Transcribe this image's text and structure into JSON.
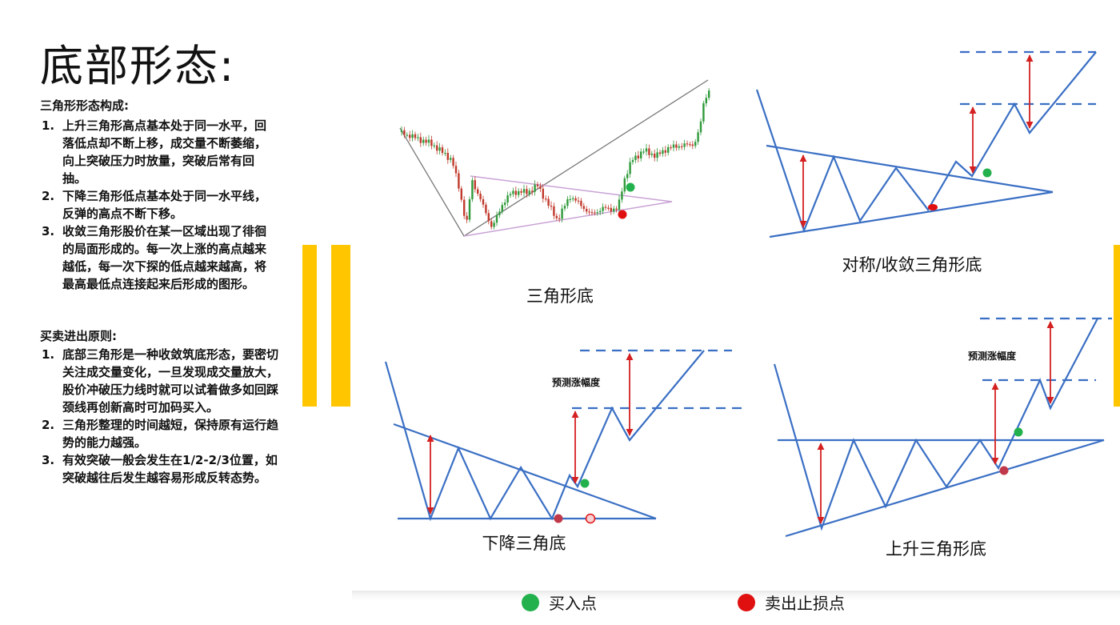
{
  "title": "底部形态:",
  "section1": {
    "heading": "三角形形态构成:",
    "items": [
      {
        "num": "1.",
        "text": "上升三角形高点基本处于同一水平，回落低点却不断上移，成交量不断萎缩，向上突破压力时放量，突破后常有回抽。"
      },
      {
        "num": "2.",
        "text": "下降三角形低点基本处于同一水平线，反弹的高点不断下移。"
      },
      {
        "num": "3.",
        "text": "收敛三角形股价在某一区域出现了徘徊的局面形成的。每一次上涨的高点越来越低，每一次下探的低点越来越高，将最高最低点连接起来后形成的图形。"
      }
    ]
  },
  "section2": {
    "heading": "买卖进出原则:",
    "items": [
      {
        "num": "1.",
        "text": "底部三角形是一种收敛筑底形态，要密切关注成交量变化，一旦发现成交量放大，股价冲破压力线时就可以试着做多如回踩颈线再创新高时可加码买入。"
      },
      {
        "num": "2.",
        "text": "三角形整理的时间越短，保持原有运行趋势的能力越强。"
      },
      {
        "num": "3.",
        "text": "有效突破一般会发生在1/2-2/3位置，如突破越往后发生越容易形成反转态势。"
      }
    ]
  },
  "diagrams": {
    "candle_caption": "三角形底",
    "sym_caption": "对称/收敛三角形底",
    "desc_caption": "下降三角底",
    "asc_caption": "上升三角形底",
    "measure_note": "预测涨幅度"
  },
  "legend": {
    "buy_label": "买入点",
    "stop_label": "卖出止损点"
  },
  "colors": {
    "accent_bar": "#ffc600",
    "pattern_line": "#3a6fc4",
    "arrow": "#d42020",
    "buy": "#22b14c",
    "stop": "#e01010",
    "candle_up": "#2f9a3a",
    "candle_down": "#c0392b",
    "triangle_overlay": "#c9a3d6"
  }
}
